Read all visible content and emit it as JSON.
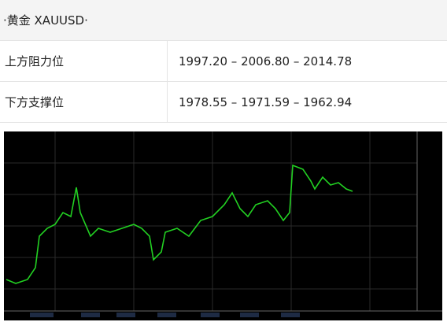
{
  "header": {
    "title": "·黄金  XAUUSD·"
  },
  "table": {
    "rows": [
      [
        "上方阻力位",
        "1997.20 – 2006.80 – 2014.78"
      ],
      [
        "下方支撑位",
        "1978.55 – 1971.59 – 1962.94"
      ]
    ]
  }
}
